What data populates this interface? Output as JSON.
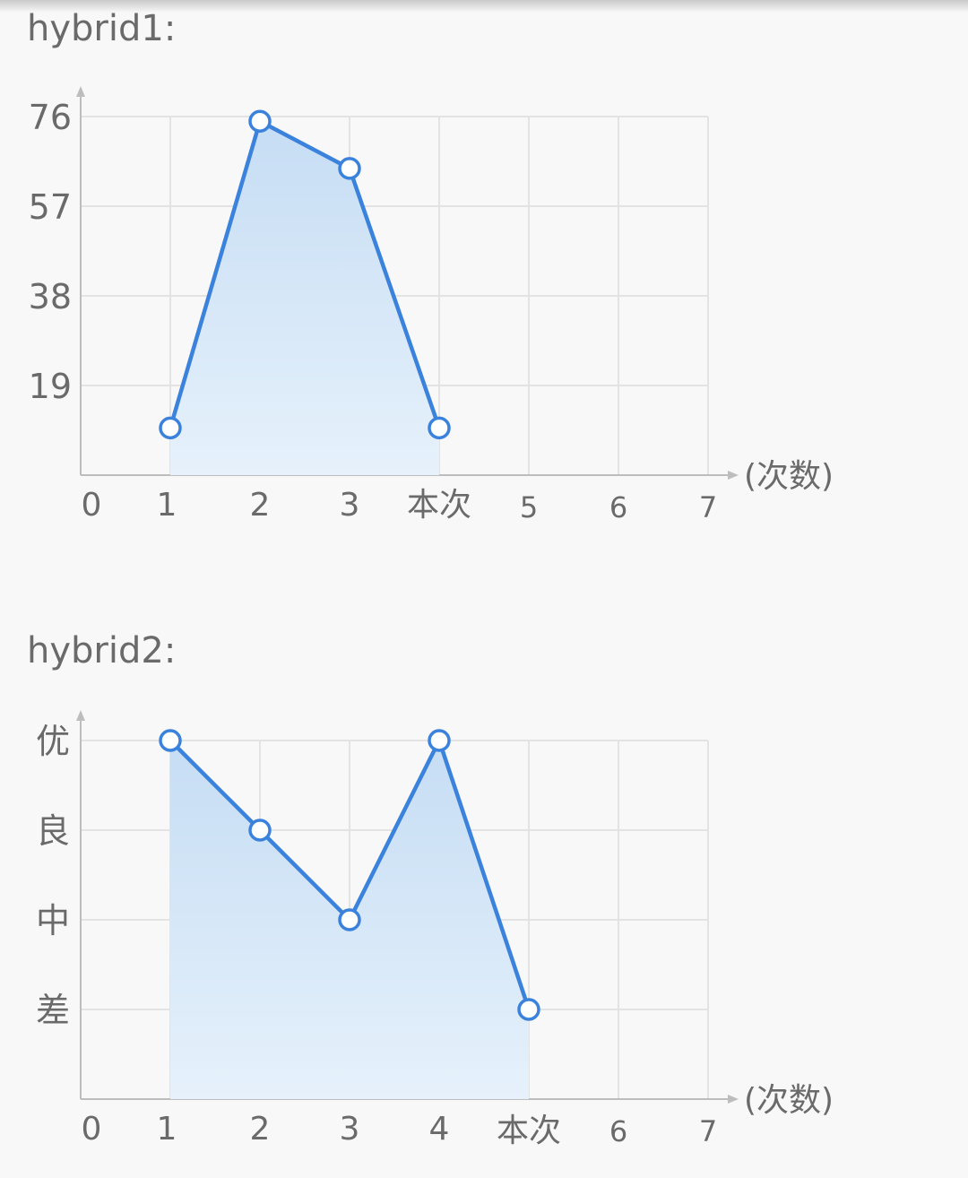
{
  "chart_data": [
    {
      "type": "area",
      "title": "hybrid1:",
      "x_unit_label": "(次数)",
      "x_ticks": [
        "0",
        "1",
        "2",
        "3",
        "本次",
        "5",
        "6",
        "7"
      ],
      "y_ticks": [
        "19",
        "38",
        "57",
        "76"
      ],
      "xlim": [
        0,
        7
      ],
      "ylim": [
        0,
        76
      ],
      "grid": true,
      "series": [
        {
          "x": [
            1,
            2,
            3,
            4
          ],
          "values": [
            10,
            75,
            65,
            10
          ],
          "color": "#3b82dd"
        }
      ]
    },
    {
      "type": "area",
      "title": "hybrid2:",
      "x_unit_label": "(次数)",
      "x_ticks": [
        "0",
        "1",
        "2",
        "3",
        "4",
        "本次",
        "6",
        "7"
      ],
      "y_ticks": [
        "差",
        "中",
        "良",
        "优"
      ],
      "xlim": [
        0,
        7
      ],
      "ylim": [
        0,
        4
      ],
      "grid": true,
      "series": [
        {
          "x": [
            1,
            2,
            3,
            4,
            5
          ],
          "values": [
            4,
            3,
            2,
            4,
            1
          ],
          "color": "#3b82dd"
        }
      ]
    }
  ]
}
